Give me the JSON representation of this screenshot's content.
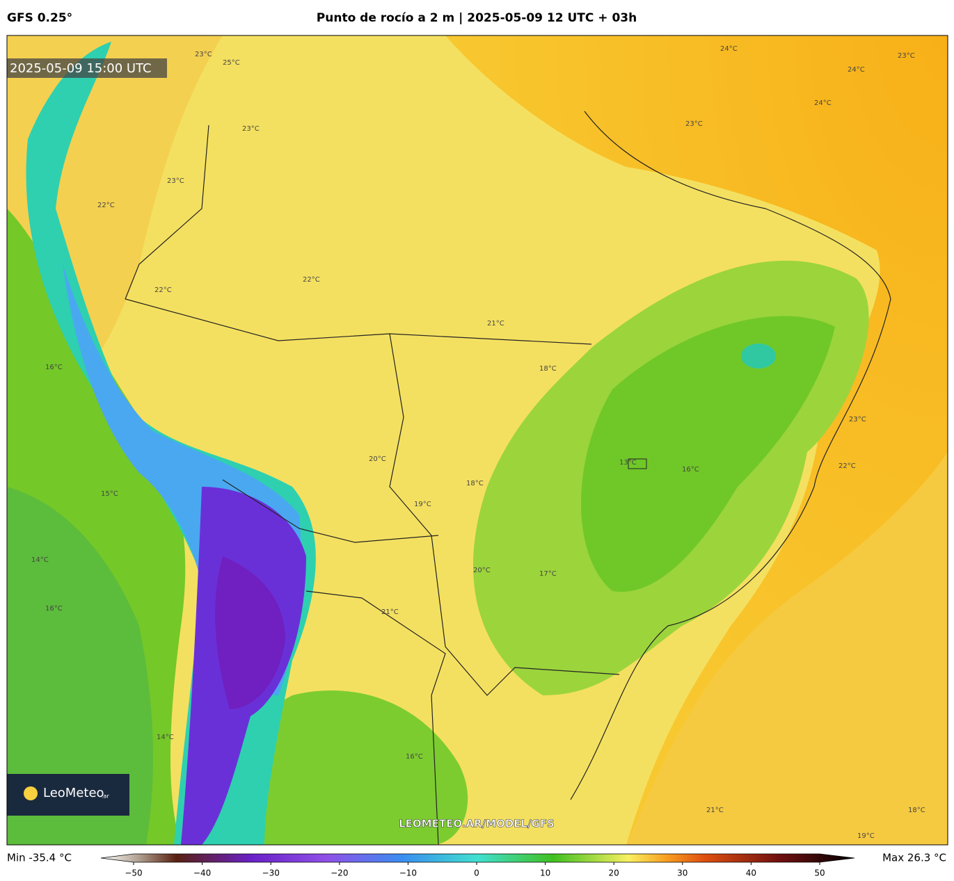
{
  "header": {
    "model": "GFS 0.25°",
    "title": "Punto de rocío a 2 m | 2025-05-09 12 UTC + 03h"
  },
  "map": {
    "valid_time": "2025-05-09 15:00 UTC",
    "watermark": "LEOMETEO.AR/MODEL/GFS",
    "logo": "LeoMeteo",
    "logo_suffix": ".ar",
    "contour_labels": [
      "23°C",
      "25°C",
      "24°C",
      "23°C",
      "24°C",
      "24°C",
      "23°C",
      "23°C",
      "23°C",
      "22°C",
      "22°C",
      "22°C",
      "21°C",
      "18°C",
      "20°C",
      "19°C",
      "18°C",
      "16°C",
      "15°C",
      "14°C",
      "16°C",
      "13°C",
      "16°C",
      "23°C",
      "22°C",
      "20°C",
      "17°C",
      "21°C",
      "14°C",
      "16°C",
      "21°C",
      "19°C",
      "18°C"
    ]
  },
  "colorbar": {
    "min_text": "Min -35.4 °C",
    "max_text": "Max 26.3 °C",
    "ticks": [
      {
        "value": -50,
        "label": "−50"
      },
      {
        "value": -40,
        "label": "−40"
      },
      {
        "value": -30,
        "label": "−30"
      },
      {
        "value": -20,
        "label": "−20"
      },
      {
        "value": -10,
        "label": "−10"
      },
      0,
      10,
      20,
      30,
      40,
      50
    ],
    "range": [
      -50,
      50
    ]
  }
}
